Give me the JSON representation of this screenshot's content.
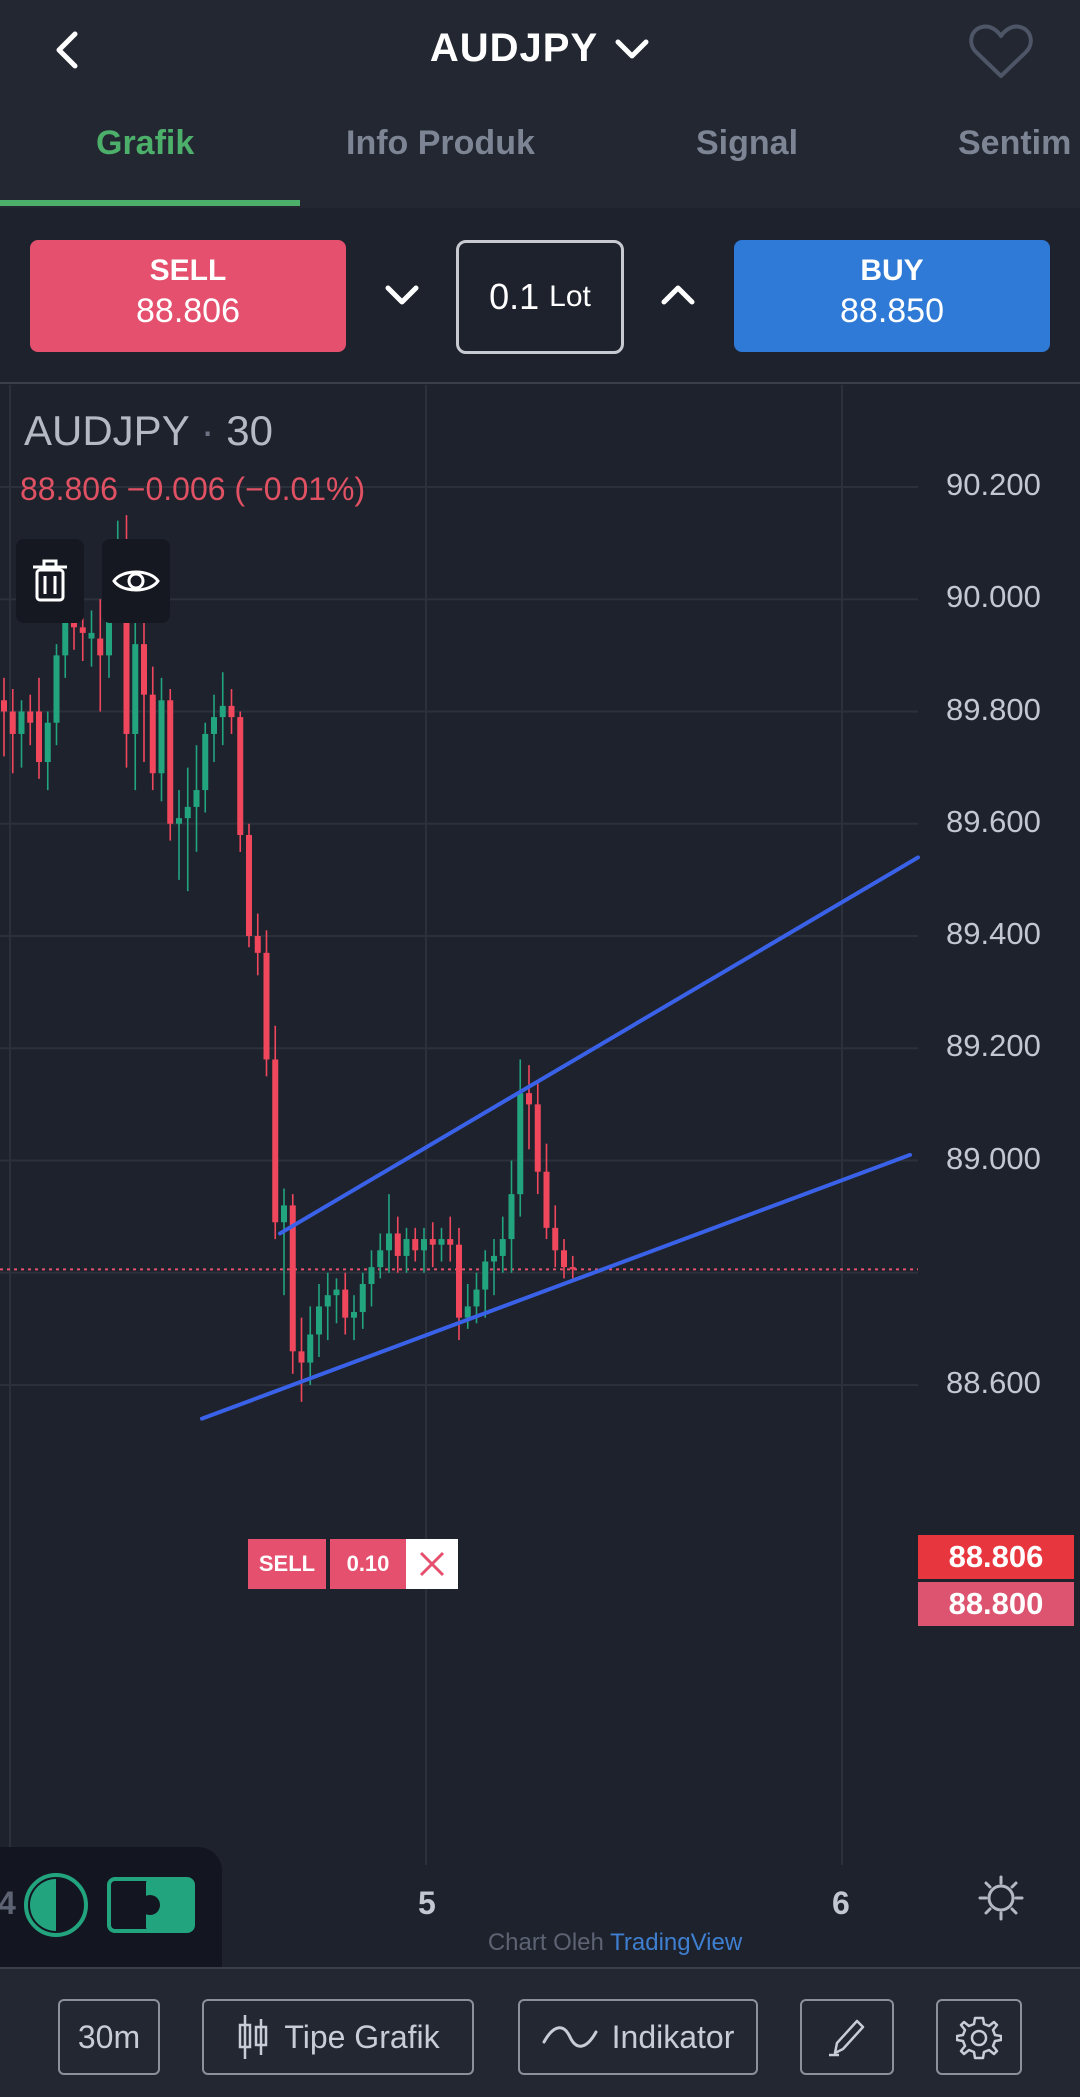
{
  "header": {
    "title": "AUDJPY"
  },
  "tabs": [
    {
      "label": "Grafik",
      "active": true
    },
    {
      "label": "Info Produk",
      "active": false
    },
    {
      "label": "Signal",
      "active": false
    },
    {
      "label": "Sentim",
      "active": false
    }
  ],
  "trade": {
    "sell_label": "SELL",
    "sell_price": "88.806",
    "buy_label": "BUY",
    "buy_price": "88.850",
    "lot_value": "0.1",
    "lot_unit": "Lot"
  },
  "chart": {
    "symbol": "AUDJPY",
    "interval": "30",
    "change_text": "88.806 −0.006 (−0.01%)",
    "y_ticks": [
      "90.200",
      "90.000",
      "89.800",
      "89.600",
      "89.400",
      "89.200",
      "89.000",
      "88.600"
    ],
    "x_labels": [
      "4",
      "5",
      "6"
    ],
    "current_price_tag": "88.806",
    "order_price_tag": "88.800",
    "order_side": "SELL",
    "order_qty": "0.10",
    "credit_prefix": "Chart Oleh",
    "credit_brand": "TradingView",
    "colors": {
      "up": "#22a57f",
      "down": "#f0475d",
      "trendline": "#3a62e8"
    }
  },
  "chart_data": {
    "type": "candlestick",
    "ylim": [
      88.45,
      90.35
    ],
    "y_ticks": [
      90.2,
      90.0,
      89.8,
      89.6,
      89.4,
      89.2,
      89.0,
      88.8,
      88.6
    ],
    "x_ticks": [
      "4",
      "5",
      "6"
    ],
    "current_price": 88.806,
    "order_price": 88.8,
    "candles": [
      {
        "o": 89.82,
        "h": 89.86,
        "l": 89.72,
        "c": 89.8,
        "up": false
      },
      {
        "o": 89.8,
        "h": 89.84,
        "l": 89.69,
        "c": 89.76,
        "up": false
      },
      {
        "o": 89.76,
        "h": 89.82,
        "l": 89.7,
        "c": 89.8,
        "up": true
      },
      {
        "o": 89.8,
        "h": 89.83,
        "l": 89.74,
        "c": 89.78,
        "up": false
      },
      {
        "o": 89.8,
        "h": 89.86,
        "l": 89.68,
        "c": 89.71,
        "up": false
      },
      {
        "o": 89.71,
        "h": 89.8,
        "l": 89.66,
        "c": 89.78,
        "up": true
      },
      {
        "o": 89.78,
        "h": 89.92,
        "l": 89.74,
        "c": 89.9,
        "up": true
      },
      {
        "o": 89.9,
        "h": 90.02,
        "l": 89.86,
        "c": 89.98,
        "up": true
      },
      {
        "o": 89.98,
        "h": 90.06,
        "l": 89.91,
        "c": 89.95,
        "up": false
      },
      {
        "o": 89.95,
        "h": 90.04,
        "l": 89.89,
        "c": 89.94,
        "up": false
      },
      {
        "o": 89.94,
        "h": 89.98,
        "l": 89.88,
        "c": 89.93,
        "up": true
      },
      {
        "o": 89.93,
        "h": 90.0,
        "l": 89.8,
        "c": 89.9,
        "up": false
      },
      {
        "o": 89.9,
        "h": 90.08,
        "l": 89.86,
        "c": 90.02,
        "up": true
      },
      {
        "o": 90.02,
        "h": 90.14,
        "l": 89.96,
        "c": 90.08,
        "up": true
      },
      {
        "o": 90.08,
        "h": 90.15,
        "l": 89.7,
        "c": 89.76,
        "up": false
      },
      {
        "o": 89.76,
        "h": 89.98,
        "l": 89.66,
        "c": 89.92,
        "up": true
      },
      {
        "o": 89.92,
        "h": 89.96,
        "l": 89.71,
        "c": 89.83,
        "up": false
      },
      {
        "o": 89.83,
        "h": 89.88,
        "l": 89.66,
        "c": 89.69,
        "up": false
      },
      {
        "o": 89.69,
        "h": 89.86,
        "l": 89.64,
        "c": 89.82,
        "up": true
      },
      {
        "o": 89.82,
        "h": 89.84,
        "l": 89.57,
        "c": 89.6,
        "up": false
      },
      {
        "o": 89.6,
        "h": 89.66,
        "l": 89.5,
        "c": 89.61,
        "up": true
      },
      {
        "o": 89.61,
        "h": 89.7,
        "l": 89.48,
        "c": 89.63,
        "up": true
      },
      {
        "o": 89.63,
        "h": 89.74,
        "l": 89.55,
        "c": 89.66,
        "up": true
      },
      {
        "o": 89.66,
        "h": 89.78,
        "l": 89.62,
        "c": 89.76,
        "up": true
      },
      {
        "o": 89.76,
        "h": 89.83,
        "l": 89.71,
        "c": 89.79,
        "up": true
      },
      {
        "o": 89.79,
        "h": 89.87,
        "l": 89.74,
        "c": 89.81,
        "up": true
      },
      {
        "o": 89.81,
        "h": 89.84,
        "l": 89.76,
        "c": 89.79,
        "up": false
      },
      {
        "o": 89.79,
        "h": 89.8,
        "l": 89.55,
        "c": 89.58,
        "up": false
      },
      {
        "o": 89.58,
        "h": 89.6,
        "l": 89.38,
        "c": 89.4,
        "up": false
      },
      {
        "o": 89.4,
        "h": 89.44,
        "l": 89.33,
        "c": 89.37,
        "up": false
      },
      {
        "o": 89.37,
        "h": 89.41,
        "l": 89.15,
        "c": 89.18,
        "up": false
      },
      {
        "o": 89.18,
        "h": 89.24,
        "l": 88.86,
        "c": 88.89,
        "up": false
      },
      {
        "o": 88.89,
        "h": 88.95,
        "l": 88.76,
        "c": 88.92,
        "up": true
      },
      {
        "o": 88.92,
        "h": 88.94,
        "l": 88.62,
        "c": 88.66,
        "up": false
      },
      {
        "o": 88.66,
        "h": 88.72,
        "l": 88.57,
        "c": 88.64,
        "up": false
      },
      {
        "o": 88.64,
        "h": 88.74,
        "l": 88.6,
        "c": 88.69,
        "up": true
      },
      {
        "o": 88.69,
        "h": 88.78,
        "l": 88.65,
        "c": 88.74,
        "up": true
      },
      {
        "o": 88.74,
        "h": 88.8,
        "l": 88.68,
        "c": 88.76,
        "up": true
      },
      {
        "o": 88.76,
        "h": 88.79,
        "l": 88.71,
        "c": 88.77,
        "up": true
      },
      {
        "o": 88.77,
        "h": 88.8,
        "l": 88.69,
        "c": 88.72,
        "up": false
      },
      {
        "o": 88.72,
        "h": 88.76,
        "l": 88.68,
        "c": 88.73,
        "up": true
      },
      {
        "o": 88.73,
        "h": 88.8,
        "l": 88.7,
        "c": 88.78,
        "up": true
      },
      {
        "o": 88.78,
        "h": 88.84,
        "l": 88.74,
        "c": 88.81,
        "up": true
      },
      {
        "o": 88.81,
        "h": 88.87,
        "l": 88.79,
        "c": 88.84,
        "up": true
      },
      {
        "o": 88.84,
        "h": 88.94,
        "l": 88.8,
        "c": 88.87,
        "up": true
      },
      {
        "o": 88.87,
        "h": 88.9,
        "l": 88.8,
        "c": 88.83,
        "up": false
      },
      {
        "o": 88.83,
        "h": 88.88,
        "l": 88.8,
        "c": 88.86,
        "up": true
      },
      {
        "o": 88.86,
        "h": 88.88,
        "l": 88.82,
        "c": 88.84,
        "up": false
      },
      {
        "o": 88.84,
        "h": 88.88,
        "l": 88.8,
        "c": 88.86,
        "up": true
      },
      {
        "o": 88.86,
        "h": 88.89,
        "l": 88.81,
        "c": 88.85,
        "up": false
      },
      {
        "o": 88.85,
        "h": 88.88,
        "l": 88.82,
        "c": 88.86,
        "up": true
      },
      {
        "o": 88.86,
        "h": 88.9,
        "l": 88.82,
        "c": 88.85,
        "up": false
      },
      {
        "o": 88.85,
        "h": 88.88,
        "l": 88.68,
        "c": 88.72,
        "up": false
      },
      {
        "o": 88.72,
        "h": 88.78,
        "l": 88.7,
        "c": 88.74,
        "up": true
      },
      {
        "o": 88.74,
        "h": 88.8,
        "l": 88.71,
        "c": 88.77,
        "up": true
      },
      {
        "o": 88.77,
        "h": 88.84,
        "l": 88.72,
        "c": 88.82,
        "up": true
      },
      {
        "o": 88.82,
        "h": 88.86,
        "l": 88.76,
        "c": 88.83,
        "up": true
      },
      {
        "o": 88.83,
        "h": 88.9,
        "l": 88.8,
        "c": 88.86,
        "up": true
      },
      {
        "o": 88.86,
        "h": 89.0,
        "l": 88.8,
        "c": 88.94,
        "up": true
      },
      {
        "o": 88.94,
        "h": 89.18,
        "l": 88.9,
        "c": 89.12,
        "up": true
      },
      {
        "o": 89.12,
        "h": 89.17,
        "l": 89.02,
        "c": 89.1,
        "up": false
      },
      {
        "o": 89.1,
        "h": 89.14,
        "l": 88.94,
        "c": 88.98,
        "up": false
      },
      {
        "o": 88.98,
        "h": 89.03,
        "l": 88.86,
        "c": 88.88,
        "up": false
      },
      {
        "o": 88.88,
        "h": 88.92,
        "l": 88.81,
        "c": 88.84,
        "up": false
      },
      {
        "o": 88.84,
        "h": 88.86,
        "l": 88.79,
        "c": 88.81,
        "up": false
      },
      {
        "o": 88.81,
        "h": 88.83,
        "l": 88.79,
        "c": 88.806,
        "up": false
      }
    ],
    "trendlines": [
      {
        "start_price": 88.87,
        "end_price": 89.54
      },
      {
        "start_price": 88.54,
        "end_price": 89.01
      }
    ]
  },
  "bottombar": {
    "timeframe": "30m",
    "chart_type": "Tipe Grafik",
    "indicator": "Indikator"
  }
}
